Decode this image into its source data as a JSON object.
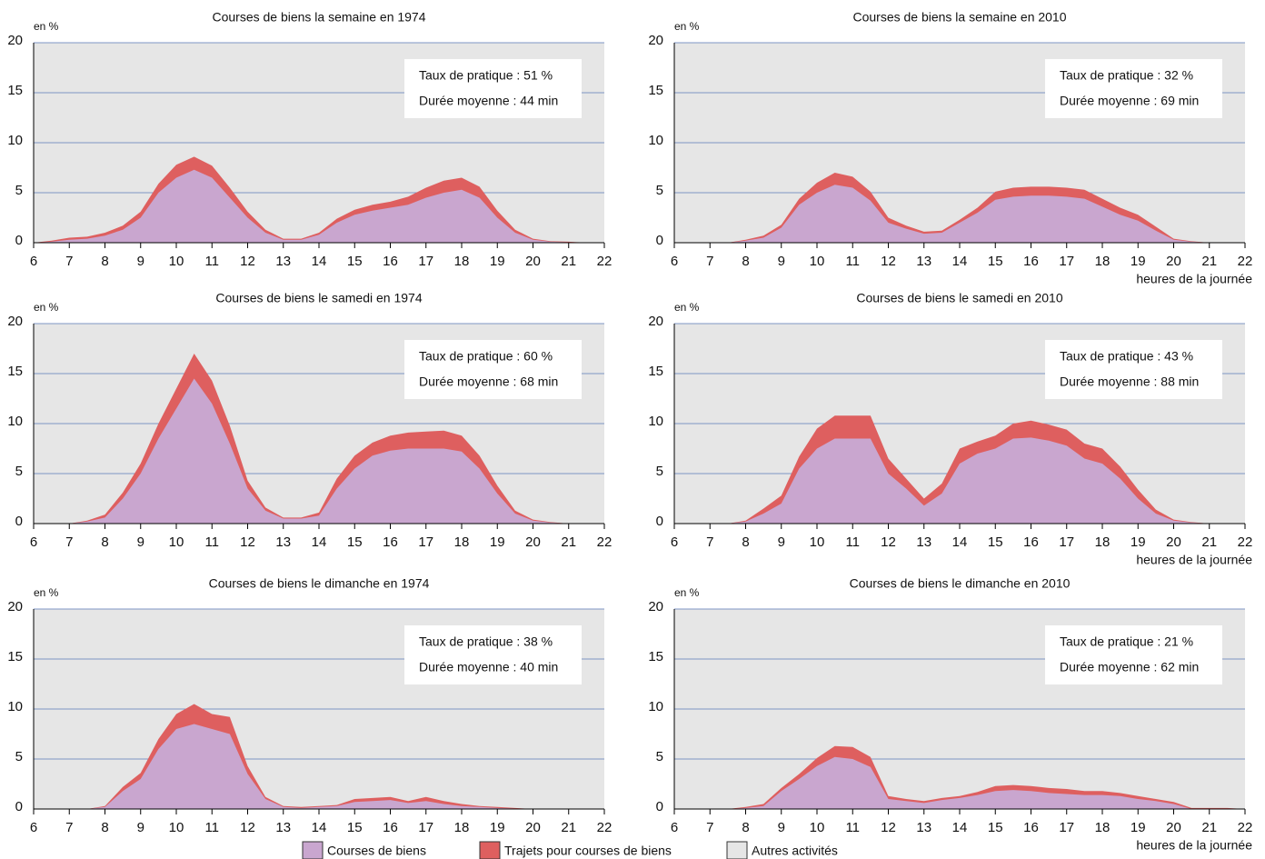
{
  "legend": [
    {
      "name": "Courses de biens",
      "color": "#c9a6cf"
    },
    {
      "name": "Trajets pour courses de biens",
      "color": "#de5f5f"
    },
    {
      "name": "Autres activités",
      "color": "#e6e6e6"
    }
  ],
  "chart_data": [
    {
      "type": "area",
      "stacked": true,
      "grid": true,
      "title": "Courses de biens la semaine en 1974",
      "ylabel": "en %",
      "annotations": [
        "Taux de pratique : 51 %",
        "Durée moyenne : 44 min"
      ],
      "x": [
        6,
        6.5,
        7,
        7.5,
        8,
        8.5,
        9,
        9.5,
        10,
        10.5,
        11,
        11.5,
        12,
        12.5,
        13,
        13.5,
        14,
        14.5,
        15,
        15.5,
        16,
        16.5,
        17,
        17.5,
        18,
        18.5,
        19,
        19.5,
        20,
        20.5,
        21,
        21.5,
        22
      ],
      "series": [
        {
          "name": "Courses de biens",
          "color": "#c9a6cf",
          "values": [
            0,
            0.1,
            0.3,
            0.4,
            0.7,
            1.3,
            2.5,
            5.0,
            6.5,
            7.3,
            6.5,
            4.5,
            2.5,
            1.0,
            0.3,
            0.3,
            0.8,
            2.0,
            2.8,
            3.2,
            3.5,
            3.8,
            4.5,
            5.0,
            5.3,
            4.5,
            2.5,
            1.0,
            0.3,
            0.1,
            0.05,
            0,
            0
          ]
        },
        {
          "name": "Trajets pour courses de biens",
          "color": "#de5f5f",
          "values": [
            0,
            0.1,
            0.2,
            0.2,
            0.3,
            0.4,
            0.6,
            0.9,
            1.3,
            1.3,
            1.2,
            1.0,
            0.6,
            0.3,
            0.1,
            0.1,
            0.2,
            0.4,
            0.5,
            0.6,
            0.6,
            0.8,
            1.0,
            1.2,
            1.2,
            1.1,
            0.7,
            0.3,
            0.1,
            0.05,
            0.05,
            0,
            0
          ]
        }
      ],
      "xlim": [
        6,
        22
      ],
      "ylim": [
        0,
        20
      ],
      "xticks": [
        6,
        7,
        8,
        9,
        10,
        11,
        12,
        13,
        14,
        15,
        16,
        17,
        18,
        19,
        20,
        21,
        22
      ],
      "yticks": [
        0,
        5,
        10,
        15,
        20
      ]
    },
    {
      "type": "area",
      "stacked": true,
      "grid": true,
      "title": "Courses de biens la semaine en 2010",
      "ylabel": "en %",
      "xlabel": "heures de la journée",
      "annotations": [
        "Taux de pratique : 32 %",
        "Durée moyenne : 69 min"
      ],
      "x": [
        6,
        6.5,
        7,
        7.5,
        8,
        8.5,
        9,
        9.5,
        10,
        10.5,
        11,
        11.5,
        12,
        12.5,
        13,
        13.5,
        14,
        14.5,
        15,
        15.5,
        16,
        16.5,
        17,
        17.5,
        18,
        18.5,
        19,
        19.5,
        20,
        20.5,
        21,
        21.5,
        22
      ],
      "series": [
        {
          "name": "Courses de biens",
          "color": "#c9a6cf",
          "values": [
            0,
            0,
            0,
            0,
            0.2,
            0.5,
            1.5,
            3.8,
            5.0,
            5.8,
            5.5,
            4.2,
            2.0,
            1.4,
            0.9,
            1.0,
            2.0,
            3.0,
            4.3,
            4.6,
            4.7,
            4.7,
            4.6,
            4.4,
            3.6,
            2.8,
            2.2,
            1.2,
            0.3,
            0.1,
            0,
            0,
            0
          ]
        },
        {
          "name": "Trajets pour courses de biens",
          "color": "#de5f5f",
          "values": [
            0,
            0,
            0,
            0,
            0.1,
            0.2,
            0.3,
            0.6,
            1.0,
            1.2,
            1.1,
            0.9,
            0.5,
            0.3,
            0.2,
            0.2,
            0.3,
            0.5,
            0.8,
            0.9,
            0.9,
            0.9,
            0.9,
            0.9,
            0.8,
            0.7,
            0.6,
            0.4,
            0.1,
            0.05,
            0,
            0,
            0
          ]
        }
      ],
      "xlim": [
        6,
        22
      ],
      "ylim": [
        0,
        20
      ],
      "xticks": [
        6,
        7,
        8,
        9,
        10,
        11,
        12,
        13,
        14,
        15,
        16,
        17,
        18,
        19,
        20,
        21,
        22
      ],
      "yticks": [
        0,
        5,
        10,
        15,
        20
      ]
    },
    {
      "type": "area",
      "stacked": true,
      "grid": true,
      "title": "Courses de biens le samedi en 1974",
      "ylabel": "en %",
      "annotations": [
        "Taux de pratique : 60 %",
        "Durée moyenne : 68 min"
      ],
      "x": [
        6,
        6.5,
        7,
        7.5,
        8,
        8.5,
        9,
        9.5,
        10,
        10.5,
        11,
        11.5,
        12,
        12.5,
        13,
        13.5,
        14,
        14.5,
        15,
        15.5,
        16,
        16.5,
        17,
        17.5,
        18,
        18.5,
        19,
        19.5,
        20,
        20.5,
        21,
        21.5,
        22
      ],
      "series": [
        {
          "name": "Courses de biens",
          "color": "#c9a6cf",
          "values": [
            0,
            0,
            0,
            0.2,
            0.6,
            2.5,
            5.0,
            8.5,
            11.5,
            14.5,
            12.0,
            8.0,
            3.5,
            1.3,
            0.5,
            0.5,
            0.8,
            3.5,
            5.5,
            6.8,
            7.3,
            7.5,
            7.5,
            7.5,
            7.2,
            5.5,
            3.0,
            1.0,
            0.3,
            0.1,
            0,
            0,
            0
          ]
        },
        {
          "name": "Trajets pour courses de biens",
          "color": "#de5f5f",
          "values": [
            0,
            0,
            0,
            0.1,
            0.3,
            0.6,
            1.0,
            1.5,
            2.0,
            2.5,
            2.3,
            1.8,
            0.8,
            0.3,
            0.1,
            0.1,
            0.3,
            1.0,
            1.3,
            1.3,
            1.5,
            1.6,
            1.7,
            1.8,
            1.6,
            1.3,
            0.8,
            0.3,
            0.1,
            0.05,
            0,
            0,
            0
          ]
        }
      ],
      "xlim": [
        6,
        22
      ],
      "ylim": [
        0,
        20
      ],
      "xticks": [
        6,
        7,
        8,
        9,
        10,
        11,
        12,
        13,
        14,
        15,
        16,
        17,
        18,
        19,
        20,
        21,
        22
      ],
      "yticks": [
        0,
        5,
        10,
        15,
        20
      ]
    },
    {
      "type": "area",
      "stacked": true,
      "grid": true,
      "title": "Courses de biens le samedi en 2010",
      "ylabel": "en %",
      "xlabel": "heures de la journée",
      "annotations": [
        "Taux de pratique : 43 %",
        "Durée moyenne : 88 min"
      ],
      "x": [
        6,
        6.5,
        7,
        7.5,
        8,
        8.5,
        9,
        9.5,
        10,
        10.5,
        11,
        11.5,
        12,
        12.5,
        13,
        13.5,
        14,
        14.5,
        15,
        15.5,
        16,
        16.5,
        17,
        17.5,
        18,
        18.5,
        19,
        19.5,
        20,
        20.5,
        21,
        21.5,
        22
      ],
      "series": [
        {
          "name": "Courses de biens",
          "color": "#c9a6cf",
          "values": [
            0,
            0,
            0,
            0,
            0.2,
            1.0,
            2.0,
            5.5,
            7.5,
            8.5,
            8.5,
            8.5,
            5.0,
            3.5,
            1.8,
            3.0,
            6.0,
            7.0,
            7.5,
            8.5,
            8.6,
            8.3,
            7.8,
            6.5,
            6.0,
            4.5,
            2.5,
            1.0,
            0.3,
            0.1,
            0,
            0,
            0
          ]
        },
        {
          "name": "Trajets pour courses de biens",
          "color": "#de5f5f",
          "values": [
            0,
            0,
            0,
            0,
            0.1,
            0.5,
            0.8,
            1.2,
            2.0,
            2.3,
            2.3,
            2.3,
            1.5,
            1.0,
            0.7,
            1.0,
            1.5,
            1.2,
            1.3,
            1.5,
            1.7,
            1.6,
            1.6,
            1.5,
            1.5,
            1.2,
            0.9,
            0.4,
            0.1,
            0.05,
            0,
            0,
            0
          ]
        }
      ],
      "xlim": [
        6,
        22
      ],
      "ylim": [
        0,
        20
      ],
      "xticks": [
        6,
        7,
        8,
        9,
        10,
        11,
        12,
        13,
        14,
        15,
        16,
        17,
        18,
        19,
        20,
        21,
        22
      ],
      "yticks": [
        0,
        5,
        10,
        15,
        20
      ]
    },
    {
      "type": "area",
      "stacked": true,
      "grid": true,
      "title": "Courses de biens le dimanche en 1974",
      "ylabel": "en %",
      "annotations": [
        "Taux de pratique : 38 %",
        "Durée moyenne : 40 min"
      ],
      "x": [
        6,
        6.5,
        7,
        7.5,
        8,
        8.5,
        9,
        9.5,
        10,
        10.5,
        11,
        11.5,
        12,
        12.5,
        13,
        13.5,
        14,
        14.5,
        15,
        15.5,
        16,
        16.5,
        17,
        17.5,
        18,
        18.5,
        19,
        19.5,
        20,
        20.5,
        21,
        21.5,
        22
      ],
      "series": [
        {
          "name": "Courses de biens",
          "color": "#c9a6cf",
          "values": [
            0,
            0,
            0,
            0,
            0.2,
            1.8,
            3.0,
            6.0,
            8.0,
            8.5,
            8.0,
            7.5,
            3.5,
            1.0,
            0.2,
            0.1,
            0.2,
            0.3,
            0.7,
            0.8,
            0.9,
            0.6,
            0.8,
            0.5,
            0.3,
            0.2,
            0.1,
            0.05,
            0,
            0,
            0,
            0,
            0
          ]
        },
        {
          "name": "Trajets pour courses de biens",
          "color": "#de5f5f",
          "values": [
            0,
            0,
            0,
            0,
            0.1,
            0.4,
            0.6,
            1.0,
            1.5,
            2.0,
            1.5,
            1.7,
            0.8,
            0.2,
            0.1,
            0.1,
            0.1,
            0.1,
            0.3,
            0.3,
            0.3,
            0.2,
            0.4,
            0.3,
            0.2,
            0.1,
            0.1,
            0.05,
            0,
            0,
            0,
            0,
            0
          ]
        }
      ],
      "xlim": [
        6,
        22
      ],
      "ylim": [
        0,
        20
      ],
      "xticks": [
        6,
        7,
        8,
        9,
        10,
        11,
        12,
        13,
        14,
        15,
        16,
        17,
        18,
        19,
        20,
        21,
        22
      ],
      "yticks": [
        0,
        5,
        10,
        15,
        20
      ]
    },
    {
      "type": "area",
      "stacked": true,
      "grid": true,
      "title": "Courses de biens le dimanche en 2010",
      "ylabel": "en %",
      "xlabel": "heures de la journée",
      "annotations": [
        "Taux de pratique : 21 %",
        "Durée moyenne : 62 min"
      ],
      "x": [
        6,
        6.5,
        7,
        7.5,
        8,
        8.5,
        9,
        9.5,
        10,
        10.5,
        11,
        11.5,
        12,
        12.5,
        13,
        13.5,
        14,
        14.5,
        15,
        15.5,
        16,
        16.5,
        17,
        17.5,
        18,
        18.5,
        19,
        19.5,
        20,
        20.5,
        21,
        21.5,
        22
      ],
      "series": [
        {
          "name": "Courses de biens",
          "color": "#c9a6cf",
          "values": [
            0,
            0,
            0,
            0,
            0.1,
            0.3,
            1.8,
            3.0,
            4.3,
            5.2,
            5.0,
            4.2,
            1.0,
            0.8,
            0.6,
            0.9,
            1.1,
            1.4,
            1.8,
            1.9,
            1.8,
            1.6,
            1.5,
            1.4,
            1.4,
            1.3,
            1.0,
            0.8,
            0.5,
            0,
            0,
            0,
            0
          ]
        },
        {
          "name": "Trajets pour courses de biens",
          "color": "#de5f5f",
          "values": [
            0,
            0,
            0,
            0,
            0.1,
            0.2,
            0.3,
            0.5,
            0.8,
            1.1,
            1.2,
            1.0,
            0.3,
            0.2,
            0.2,
            0.2,
            0.2,
            0.3,
            0.5,
            0.5,
            0.5,
            0.5,
            0.5,
            0.4,
            0.4,
            0.3,
            0.3,
            0.2,
            0.2,
            0.1,
            0.1,
            0.1,
            0
          ]
        }
      ],
      "xlim": [
        6,
        22
      ],
      "ylim": [
        0,
        20
      ],
      "xticks": [
        6,
        7,
        8,
        9,
        10,
        11,
        12,
        13,
        14,
        15,
        16,
        17,
        18,
        19,
        20,
        21,
        22
      ],
      "yticks": [
        0,
        5,
        10,
        15,
        20
      ]
    }
  ]
}
